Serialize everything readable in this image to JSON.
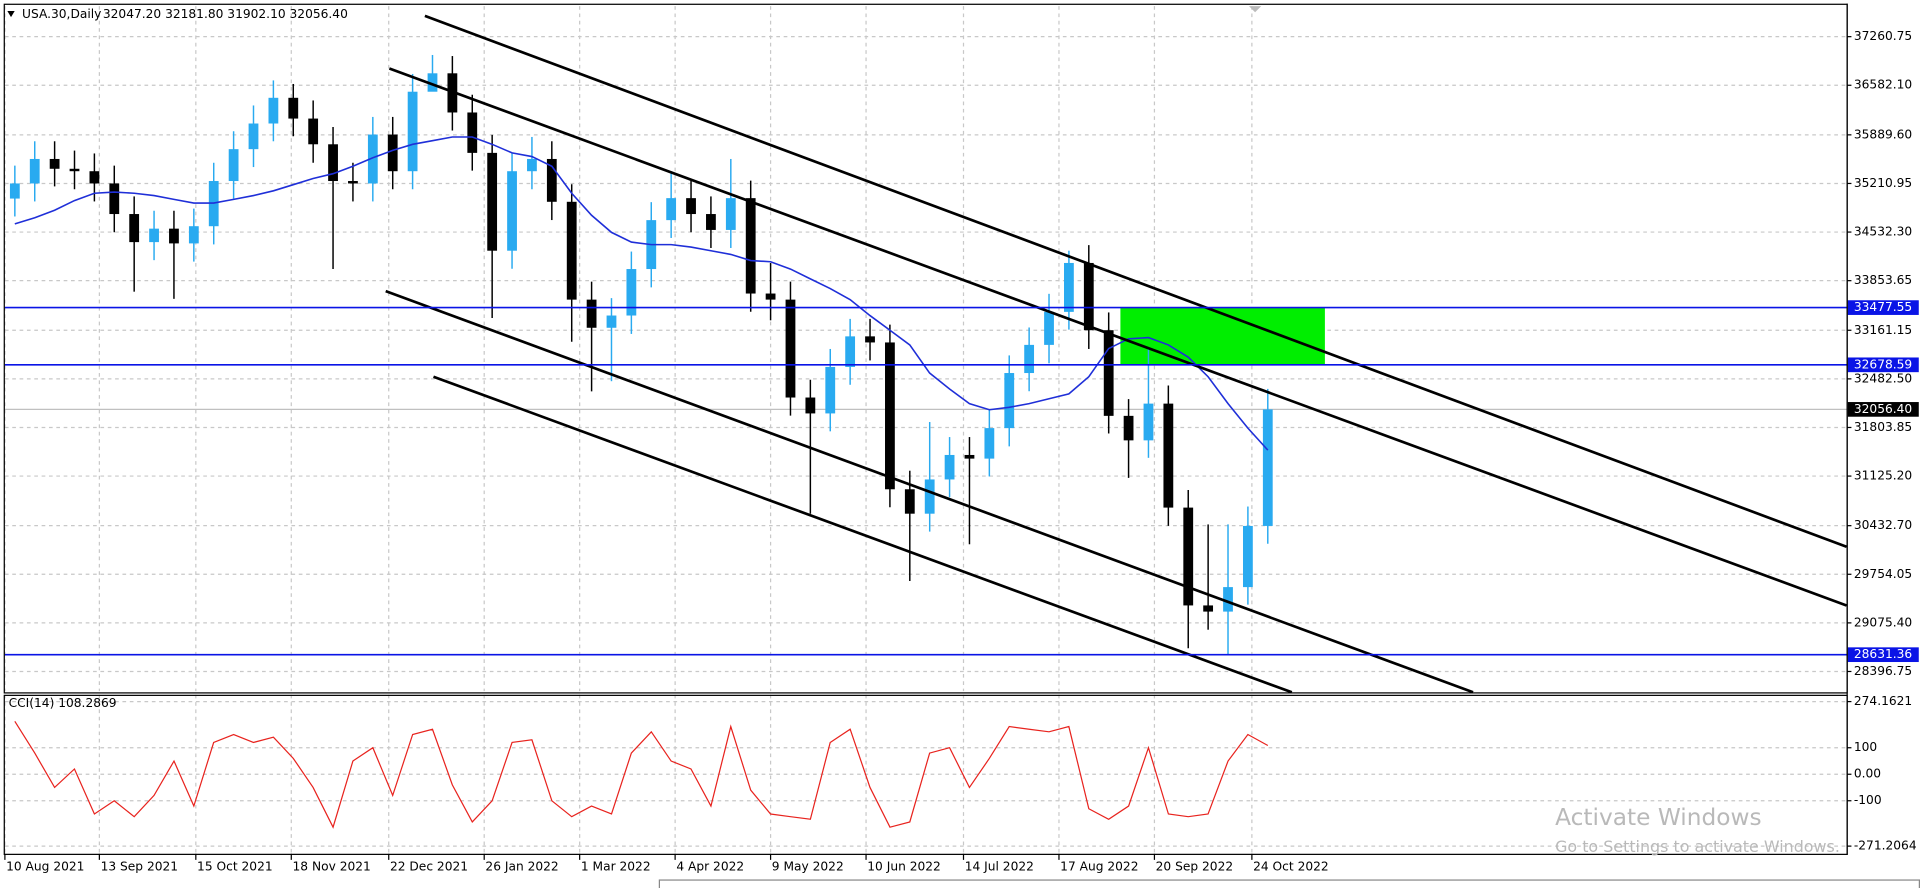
{
  "header": {
    "symbol": "USA.30,Daily",
    "ohlc": "32047.20 32181.80 31902.10 32056.40"
  },
  "watermark": {
    "line1": "Activate Windows",
    "line2": "Go to Settings to activate Windows."
  },
  "chart_data": [
    {
      "type": "candlestick",
      "up_color": "#29aaf0",
      "down_color": "#000000",
      "grid": true,
      "xlim": [
        -0.5,
        92.1
      ],
      "ylim": [
        28123.2,
        37687.2
      ],
      "xticks": [
        {
          "value": -0.5,
          "label": "10 Aug 2021"
        },
        {
          "value": 4.25,
          "label": "13 Sep 2021"
        },
        {
          "value": 9.1,
          "label": "15 Oct 2021"
        },
        {
          "value": 13.9,
          "label": "18 Nov 2021"
        },
        {
          "value": 18.8,
          "label": "22 Dec 2021"
        },
        {
          "value": 23.6,
          "label": "26 Jan 2022"
        },
        {
          "value": 28.4,
          "label": "1 Mar 2022"
        },
        {
          "value": 33.2,
          "label": "4 Apr 2022"
        },
        {
          "value": 38.0,
          "label": "9 May 2022"
        },
        {
          "value": 42.8,
          "label": "10 Jun 2022"
        },
        {
          "value": 47.7,
          "label": "14 Jul 2022"
        },
        {
          "value": 52.5,
          "label": "17 Aug 2022"
        },
        {
          "value": 57.3,
          "label": "20 Sep 2022"
        },
        {
          "value": 62.2,
          "label": "24 Oct 2022"
        }
      ],
      "yticks": [
        37260.75,
        {
          "value": 36582.1,
          "label": "36582.10"
        },
        {
          "value": 35889.6,
          "label": "35889.60"
        },
        35210.95,
        {
          "value": 34532.3,
          "label": "34532.30"
        },
        33853.65,
        33161.15,
        {
          "value": 32482.5,
          "label": "32482.50"
        },
        31803.85,
        {
          "value": 31125.2,
          "label": "31125.20"
        },
        {
          "value": 30432.7,
          "label": "30432.70"
        },
        29754.05,
        {
          "value": 29075.4,
          "label": "29075.40"
        },
        28396.75
      ],
      "open": [
        35000,
        35211,
        35553,
        35416,
        35382,
        35211,
        34784,
        34392,
        34580,
        34374,
        34614,
        35245,
        35690,
        36048,
        36407,
        36117,
        35758,
        35245,
        35211,
        35894,
        35382,
        36492,
        36749,
        36202,
        35638,
        34272,
        35382,
        35553,
        34955,
        33589,
        33196,
        33367,
        34016,
        34699,
        35006,
        34784,
        34562,
        35006,
        33674,
        33589,
        32222,
        32000,
        32649,
        33076,
        32991,
        30941,
        30600,
        31078,
        31420,
        31369,
        31795,
        32564,
        32957,
        33418,
        34101,
        33162,
        31966,
        31624,
        32137,
        30685,
        29319,
        29233,
        29575,
        30429
      ],
      "high": [
        35460,
        35800,
        35800,
        35670,
        35630,
        35460,
        35030,
        34830,
        34830,
        34860,
        35500,
        35940,
        36300,
        36650,
        36600,
        36370,
        36000,
        35500,
        36140,
        36140,
        36740,
        37005,
        36990,
        36450,
        35890,
        35630,
        35860,
        35800,
        35200,
        33840,
        33610,
        34260,
        34950,
        35382,
        35250,
        35030,
        35553,
        35250,
        34100,
        33840,
        32470,
        32900,
        33320,
        33320,
        33240,
        31200,
        31880,
        31670,
        31670,
        32050,
        32810,
        33200,
        33670,
        34272,
        34350,
        33410,
        32200,
        32900,
        32390,
        30930,
        30450,
        30450,
        30700,
        32342
      ],
      "low": [
        34750,
        34960,
        35170,
        35130,
        34960,
        34530,
        33700,
        34140,
        33600,
        34120,
        34360,
        35000,
        35440,
        35800,
        35870,
        35500,
        34016,
        34960,
        34960,
        35130,
        35130,
        36500,
        35950,
        35390,
        33332,
        34020,
        35130,
        34700,
        33000,
        32308,
        32450,
        33110,
        33760,
        34450,
        34530,
        34310,
        34310,
        33420,
        33300,
        31970,
        30600,
        31750,
        32400,
        32740,
        30690,
        29660,
        30350,
        30830,
        30173,
        31120,
        31540,
        32310,
        32700,
        33170,
        32900,
        31720,
        31100,
        31380,
        30430,
        28721,
        28980,
        28636,
        29330,
        30180
      ],
      "close": [
        35211,
        35553,
        35416,
        35382,
        35211,
        34784,
        34392,
        34580,
        34374,
        34614,
        35245,
        35690,
        36048,
        36407,
        36117,
        35758,
        35245,
        35211,
        35894,
        35382,
        36492,
        36749,
        36202,
        35638,
        34272,
        35382,
        35553,
        34955,
        33589,
        33196,
        33367,
        34016,
        34699,
        35006,
        34784,
        34562,
        35006,
        33674,
        33589,
        32222,
        32000,
        32649,
        33076,
        32991,
        30941,
        30600,
        31078,
        31420,
        31369,
        31795,
        32564,
        32957,
        33418,
        34101,
        33162,
        31966,
        31624,
        32137,
        30685,
        29319,
        29233,
        29575,
        30429,
        32056.4
      ],
      "ma": {
        "color": "#1f2fd8",
        "values": [
          34648,
          34733,
          34836,
          34972,
          35075,
          35092,
          35075,
          35041,
          34989,
          34938,
          34938,
          34989,
          35041,
          35109,
          35194,
          35280,
          35348,
          35451,
          35570,
          35673,
          35758,
          35809,
          35860,
          35860,
          35758,
          35638,
          35587,
          35451,
          35075,
          34767,
          34528,
          34392,
          34357,
          34357,
          34323,
          34272,
          34221,
          34135,
          34118,
          34016,
          33879,
          33743,
          33589,
          33367,
          33162,
          32957,
          32564,
          32342,
          32137,
          32052,
          32086,
          32137,
          32205,
          32274,
          32513,
          32906,
          33042,
          33059,
          32957,
          32786,
          32513,
          32137,
          31795,
          31488
        ]
      },
      "hlines": {
        "color": "#0a14e6",
        "zone_color": "#00ee00",
        "values": [
          33477.55,
          32678.59,
          28631.36
        ]
      },
      "last_price": {
        "value": 32056.4,
        "label": "32056.40"
      }
    },
    {
      "type": "line",
      "title": "CCI(14) 108.2869",
      "color": "#e8231e",
      "xlim": [
        -0.5,
        92.1
      ],
      "ylim": [
        -300,
        300
      ],
      "yticks": [
        274.1621,
        100,
        {
          "value": 0,
          "label": "0.00"
        },
        -100,
        -271.2064
      ],
      "values": [
        200,
        80,
        -50,
        20,
        -150,
        -100,
        -160,
        -80,
        50,
        -120,
        120,
        150,
        120,
        140,
        60,
        -50,
        -200,
        50,
        100,
        -80,
        150,
        170,
        -40,
        -180,
        -100,
        120,
        130,
        -100,
        -160,
        -120,
        -150,
        80,
        160,
        50,
        20,
        -120,
        180,
        -60,
        -150,
        -160,
        -170,
        120,
        170,
        -50,
        -200,
        -180,
        80,
        100,
        -50,
        60,
        180,
        170,
        160,
        180,
        -130,
        -170,
        -120,
        100,
        -150,
        -160,
        -150,
        50,
        150,
        108.2869
      ]
    }
  ]
}
